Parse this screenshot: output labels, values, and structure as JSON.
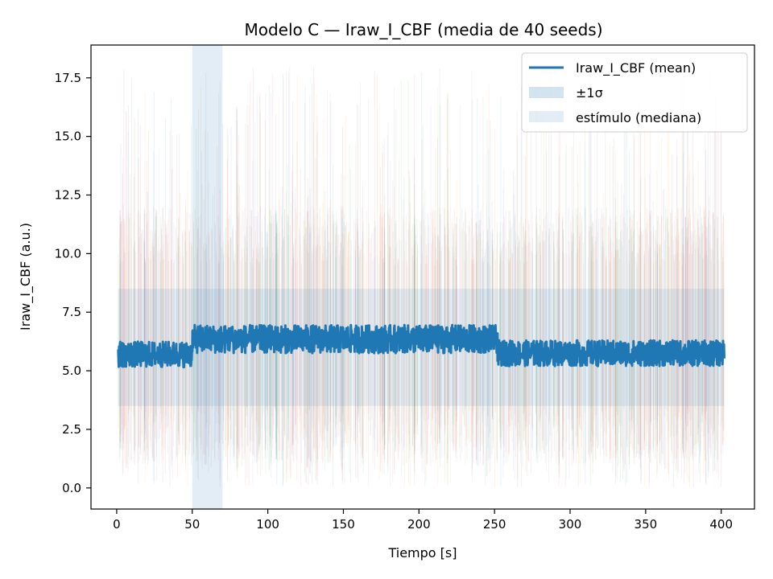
{
  "chart_data": {
    "type": "line",
    "title": "Modelo C — Iraw_I_CBF (media de 40 seeds)",
    "xlabel": "Tiempo [s]",
    "ylabel": "Iraw_I_CBF (a.u.)",
    "xlim": [
      -17,
      422
    ],
    "ylim": [
      -0.9,
      18.9
    ],
    "xticks": [
      0,
      50,
      100,
      150,
      200,
      250,
      300,
      350,
      400
    ],
    "yticks": [
      0.0,
      2.5,
      5.0,
      7.5,
      10.0,
      12.5,
      15.0,
      17.5
    ],
    "xtick_labels": [
      "0",
      "50",
      "100",
      "150",
      "200",
      "250",
      "300",
      "350",
      "400"
    ],
    "ytick_labels": [
      "0.0",
      "2.5",
      "5.0",
      "7.5",
      "10.0",
      "12.5",
      "15.0",
      "17.5"
    ],
    "grid": false,
    "legend_position": "top-right",
    "series": [
      {
        "name": "Iraw_I_CBF (mean)",
        "color": "#1f77b4",
        "segments": [
          {
            "t_start": 1,
            "t_end": 50,
            "mean": 5.7,
            "noise": 0.55
          },
          {
            "t_start": 50,
            "t_end": 252,
            "mean": 6.35,
            "noise": 0.6
          },
          {
            "t_start": 252,
            "t_end": 402,
            "mean": 5.75,
            "noise": 0.55
          }
        ]
      }
    ],
    "band": {
      "name": "±1σ",
      "color": "#1f77b4",
      "opacity": 0.2,
      "t_start": 1,
      "t_end": 402,
      "lower": 3.5,
      "upper": 8.5
    },
    "stimulus": {
      "name": "estímulo (mediana)",
      "color": "#1f77b4",
      "opacity": 0.13,
      "t_start": 50,
      "t_end": 70
    },
    "seed_traces": {
      "count": 40,
      "t_start": 1,
      "t_end": 402,
      "value_range": [
        0,
        18
      ],
      "common_range": [
        1,
        12
      ],
      "colors": [
        "#1f77b4",
        "#ff7f0e",
        "#2ca02c",
        "#d62728",
        "#9467bd",
        "#8c564b"
      ]
    }
  }
}
